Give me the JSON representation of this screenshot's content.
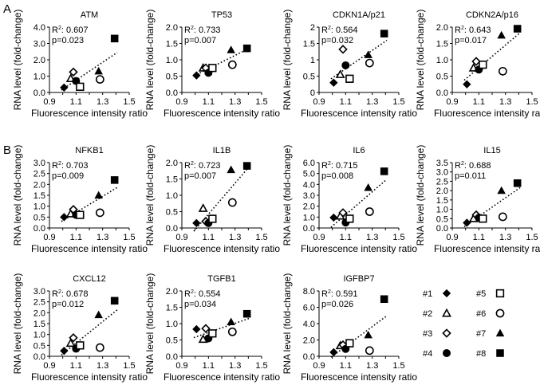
{
  "figure": {
    "panel_labels": [
      "A",
      "B"
    ],
    "xlabel": "Fluorescence intensity ratio",
    "ylabel": "RNA level (fold-change)",
    "legend": [
      {
        "label": "#1",
        "marker": "diamond-filled"
      },
      {
        "label": "#2",
        "marker": "triangle-open"
      },
      {
        "label": "#3",
        "marker": "diamond-open"
      },
      {
        "label": "#4",
        "marker": "circle-filled"
      },
      {
        "label": "#5",
        "marker": "square-open"
      },
      {
        "label": "#6",
        "marker": "circle-open"
      },
      {
        "label": "#7",
        "marker": "triangle-filled"
      },
      {
        "label": "#8",
        "marker": "square-filled"
      }
    ]
  },
  "chart_data": [
    {
      "type": "scatter",
      "title": "ATM",
      "xlabel": "Fluorescence intensity ratio",
      "ylabel": "RNA level (fold-change)",
      "xlim": [
        0.9,
        1.5
      ],
      "ylim": [
        0,
        4
      ],
      "xticks": [
        "0.9",
        "1",
        "1.1",
        "1.2",
        "1.3",
        "1.4",
        "1.5"
      ],
      "yticks": [
        "0.0",
        "1.0",
        "2.0",
        "3.0",
        "4.0"
      ],
      "r2": "0.607",
      "p": "p=0.023",
      "trendline": "dotted",
      "x": [
        1.01,
        1.06,
        1.08,
        1.1,
        1.13,
        1.28,
        1.27,
        1.39
      ],
      "y": [
        0.3,
        0.85,
        1.25,
        0.7,
        0.35,
        0.8,
        1.3,
        3.3
      ]
    },
    {
      "type": "scatter",
      "title": "TP53",
      "xlabel": "Fluorescence intensity ratio",
      "ylabel": "RNA level (fold-change)",
      "xlim": [
        0.9,
        1.5
      ],
      "ylim": [
        0,
        2
      ],
      "xticks": [
        "0.9",
        "1",
        "1.1",
        "1.2",
        "1.3",
        "1.4",
        "1.5"
      ],
      "yticks": [
        "0.0",
        "0.5",
        "1.0",
        "1.5",
        "2.0"
      ],
      "r2": "0.733",
      "p": "p=0.007",
      "trendline": "dotted",
      "x": [
        1.01,
        1.06,
        1.08,
        1.1,
        1.13,
        1.28,
        1.27,
        1.39
      ],
      "y": [
        0.52,
        0.75,
        0.75,
        0.6,
        0.75,
        0.85,
        1.3,
        1.35
      ]
    },
    {
      "type": "scatter",
      "title": "CDKN1A/p21",
      "xlabel": "Fluorescence intensity ratio",
      "ylabel": "RNA level (fold-change)",
      "xlim": [
        0.9,
        1.5
      ],
      "ylim": [
        0,
        2
      ],
      "xticks": [
        "0.9",
        "1",
        "1.1",
        "1.2",
        "1.3",
        "1.4",
        "1.5"
      ],
      "yticks": [
        "0",
        "0.5",
        "1",
        "1.5",
        "2"
      ],
      "r2": "0.564",
      "p": "p=0.032",
      "trendline": "dotted",
      "x": [
        1.01,
        1.06,
        1.08,
        1.1,
        1.13,
        1.28,
        1.27,
        1.39
      ],
      "y": [
        0.3,
        0.55,
        1.32,
        0.83,
        0.42,
        0.9,
        1.15,
        1.8
      ]
    },
    {
      "type": "scatter",
      "title": "CDKN2A/p16",
      "xlabel": "Fluorescence intensity ratio",
      "ylabel": "RNA level (fold-change)",
      "xlim": [
        0.9,
        1.5
      ],
      "ylim": [
        0,
        2
      ],
      "xticks": [
        "0.9",
        "1",
        "1.1",
        "1.2",
        "1.3",
        "1.4",
        "1.5"
      ],
      "yticks": [
        "0.0",
        "0.5",
        "1.0",
        "1.5",
        "2.0"
      ],
      "r2": "0.643",
      "p": "p=0.017",
      "trendline": "dotted",
      "x": [
        1.01,
        1.06,
        1.08,
        1.1,
        1.13,
        1.28,
        1.27,
        1.39
      ],
      "y": [
        0.25,
        0.75,
        0.95,
        0.7,
        0.85,
        0.65,
        1.75,
        1.95
      ]
    },
    {
      "type": "scatter",
      "title": "NFKB1",
      "xlabel": "Fluorescence intensity ratio",
      "ylabel": "RNA level (fold-change)",
      "xlim": [
        0.9,
        1.5
      ],
      "ylim": [
        0,
        3
      ],
      "xticks": [
        "0.9",
        "1",
        "1.1",
        "1.2",
        "1.3",
        "1.4",
        "1.5"
      ],
      "yticks": [
        "0.0",
        "0.5",
        "1.0",
        "1.5",
        "2.0",
        "2.5",
        "3.0"
      ],
      "r2": "0.703",
      "p": "p=0.009",
      "trendline": "dotted",
      "x": [
        1.01,
        1.06,
        1.08,
        1.1,
        1.13,
        1.28,
        1.27,
        1.39
      ],
      "y": [
        0.5,
        0.65,
        0.85,
        0.6,
        0.6,
        0.7,
        1.5,
        2.2
      ]
    },
    {
      "type": "scatter",
      "title": "IL1B",
      "xlabel": "Fluorescence intensity ratio",
      "ylabel": "RNA level (fold-change)",
      "xlim": [
        0.9,
        1.5
      ],
      "ylim": [
        0,
        2
      ],
      "xticks": [
        "0.9",
        "1",
        "1.1",
        "1.2",
        "1.3",
        "1.4",
        "1.5"
      ],
      "yticks": [
        "0.0",
        "0.5",
        "1.0",
        "1.5",
        "2.0"
      ],
      "r2": "0.723",
      "p": "p=0.007",
      "trendline": "dotted",
      "x": [
        1.01,
        1.06,
        1.08,
        1.1,
        1.13,
        1.28,
        1.27,
        1.39
      ],
      "y": [
        0.15,
        0.6,
        0.2,
        0.15,
        0.28,
        0.78,
        1.78,
        1.9
      ]
    },
    {
      "type": "scatter",
      "title": "IL6",
      "xlabel": "Fluorescence intensity ratio",
      "ylabel": "RNA level (fold-change)",
      "xlim": [
        0.9,
        1.5
      ],
      "ylim": [
        0,
        6
      ],
      "xticks": [
        "0.9",
        "1",
        "1.1",
        "1.2",
        "1.3",
        "1.4",
        "1.5"
      ],
      "yticks": [
        "0.0",
        "1.0",
        "2.0",
        "3.0",
        "4.0",
        "5.0",
        "6.0"
      ],
      "r2": "0.715",
      "p": "p=0.008",
      "trendline": "dotted",
      "x": [
        1.01,
        1.06,
        1.08,
        1.1,
        1.13,
        1.28,
        1.27,
        1.39
      ],
      "y": [
        0.95,
        1.1,
        1.4,
        0.5,
        0.85,
        1.5,
        3.7,
        5.2
      ]
    },
    {
      "type": "scatter",
      "title": "IL15",
      "xlabel": "Fluorescence intensity ratio",
      "ylabel": "RNA level (fold-change)",
      "xlim": [
        0.9,
        1.5
      ],
      "ylim": [
        0,
        3.5
      ],
      "xticks": [
        "0.9",
        "1",
        "1.1",
        "1.2",
        "1.3",
        "1.4",
        "1.5"
      ],
      "yticks": [
        "0.0",
        "0.5",
        "1.0",
        "1.5",
        "2.0",
        "2.5",
        "3.0",
        "3.5"
      ],
      "r2": "0.688",
      "p": "p=0.011",
      "trendline": "dotted",
      "x": [
        1.01,
        1.06,
        1.08,
        1.1,
        1.13,
        1.28,
        1.27,
        1.39
      ],
      "y": [
        0.28,
        0.5,
        0.7,
        0.55,
        0.5,
        0.6,
        2.0,
        2.4
      ]
    },
    {
      "type": "scatter",
      "title": "CXCL12",
      "xlabel": "Fluorescence intensity ratio",
      "ylabel": "RNA level (fold-change)",
      "xlim": [
        0.9,
        1.5
      ],
      "ylim": [
        0,
        3
      ],
      "xticks": [
        "0.9",
        "1",
        "1.1",
        "1.2",
        "1.3",
        "1.4",
        "1.5"
      ],
      "yticks": [
        "0.0",
        "0.5",
        "1.0",
        "1.5",
        "2.0",
        "2.5",
        "3.0"
      ],
      "r2": "0.678",
      "p": "p=0.012",
      "trendline": "dotted",
      "x": [
        1.01,
        1.06,
        1.08,
        1.1,
        1.13,
        1.28,
        1.27,
        1.39
      ],
      "y": [
        0.25,
        0.6,
        0.85,
        0.35,
        0.5,
        0.4,
        1.9,
        2.55
      ]
    },
    {
      "type": "scatter",
      "title": "TGFB1",
      "xlabel": "Fluorescence intensity ratio",
      "ylabel": "RNA level (fold-change)",
      "xlim": [
        0.9,
        1.5
      ],
      "ylim": [
        0,
        2
      ],
      "xticks": [
        "0.9",
        "1",
        "1.1",
        "1.2",
        "1.3",
        "1.4",
        "1.5"
      ],
      "yticks": [
        "0.0",
        "0.5",
        "1.0",
        "1.5",
        "2.0"
      ],
      "r2": "0.554",
      "p": "p=0.034",
      "trendline": "dotted",
      "x": [
        1.01,
        1.06,
        1.08,
        1.1,
        1.13,
        1.28,
        1.27,
        1.39
      ],
      "y": [
        0.83,
        0.52,
        0.85,
        0.55,
        0.7,
        0.75,
        1.05,
        1.3
      ]
    },
    {
      "type": "scatter",
      "title": "IGFBP7",
      "xlabel": "Fluorescence intensity ratio",
      "ylabel": "RNA level (fold-change)",
      "xlim": [
        0.9,
        1.5
      ],
      "ylim": [
        0,
        8
      ],
      "xticks": [
        "0.9",
        "1",
        "1.1",
        "1.2",
        "1.3",
        "1.4",
        "1.5"
      ],
      "yticks": [
        "0.0",
        "2.0",
        "4.0",
        "6.0",
        "8.0"
      ],
      "r2": "0.591",
      "p": "p=0.026",
      "trendline": "dotted",
      "x": [
        1.01,
        1.06,
        1.08,
        1.1,
        1.13,
        1.28,
        1.27,
        1.39
      ],
      "y": [
        0.5,
        1.3,
        1.4,
        0.9,
        1.6,
        0.7,
        2.6,
        7.0
      ]
    }
  ]
}
